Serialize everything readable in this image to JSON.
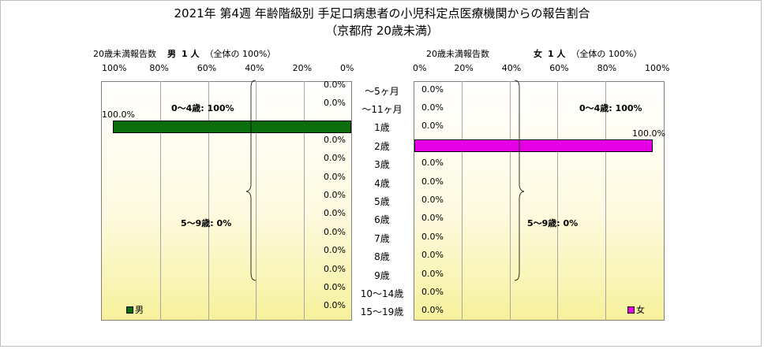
{
  "title_line1": "2021年 第4週 年齢階級別 手足口病患者の小児科定点医療機関からの報告割合",
  "title_line2": "（京都府 20歳未満）",
  "left_header": {
    "label": "20歳未満報告数",
    "sex": "男",
    "count": "1 人",
    "note": "（全体の  100%）"
  },
  "right_header": {
    "label": "20歳未満報告数",
    "sex": "女",
    "count": "1 人",
    "note": "（全体の  100%）"
  },
  "groups": {
    "g1": "0～4歳: 100%",
    "g2": "5～9歳: 0%",
    "g1_f": "0～4歳: 100%",
    "g2_f": "5～9歳: 0%"
  },
  "colors": {
    "male": "#0b6d0b",
    "female": "#e600e6"
  },
  "chart_data": {
    "type": "bar",
    "categories": [
      "～5ヶ月",
      "～11ヶ月",
      "1歳",
      "2歳",
      "3歳",
      "4歳",
      "5歳",
      "6歳",
      "7歳",
      "8歳",
      "9歳",
      "10～14歳",
      "15～19歳"
    ],
    "series": [
      {
        "name": "男",
        "values": [
          0,
          0,
          100,
          0,
          0,
          0,
          0,
          0,
          0,
          0,
          0,
          0,
          0
        ],
        "labels": [
          "0.0%",
          "0.0%",
          "100.0%",
          "0.0%",
          "0.0%",
          "0.0%",
          "0.0%",
          "0.0%",
          "0.0%",
          "0.0%",
          "0.0%",
          "0.0%",
          "0.0%"
        ]
      },
      {
        "name": "女",
        "values": [
          0,
          0,
          0,
          100,
          0,
          0,
          0,
          0,
          0,
          0,
          0,
          0,
          0
        ],
        "labels": [
          "0.0%",
          "0.0%",
          "0.0%",
          "100.0%",
          "0.0%",
          "0.0%",
          "0.0%",
          "0.0%",
          "0.0%",
          "0.0%",
          "0.0%",
          "0.0%",
          "0.0%"
        ]
      }
    ],
    "left_ticks": [
      "100%",
      "80%",
      "60%",
      "40%",
      "20%",
      "0%"
    ],
    "right_ticks": [
      "0%",
      "20%",
      "40%",
      "60%",
      "80%",
      "100%"
    ],
    "xlim": [
      0,
      100
    ],
    "legend": [
      "男",
      "女"
    ]
  }
}
